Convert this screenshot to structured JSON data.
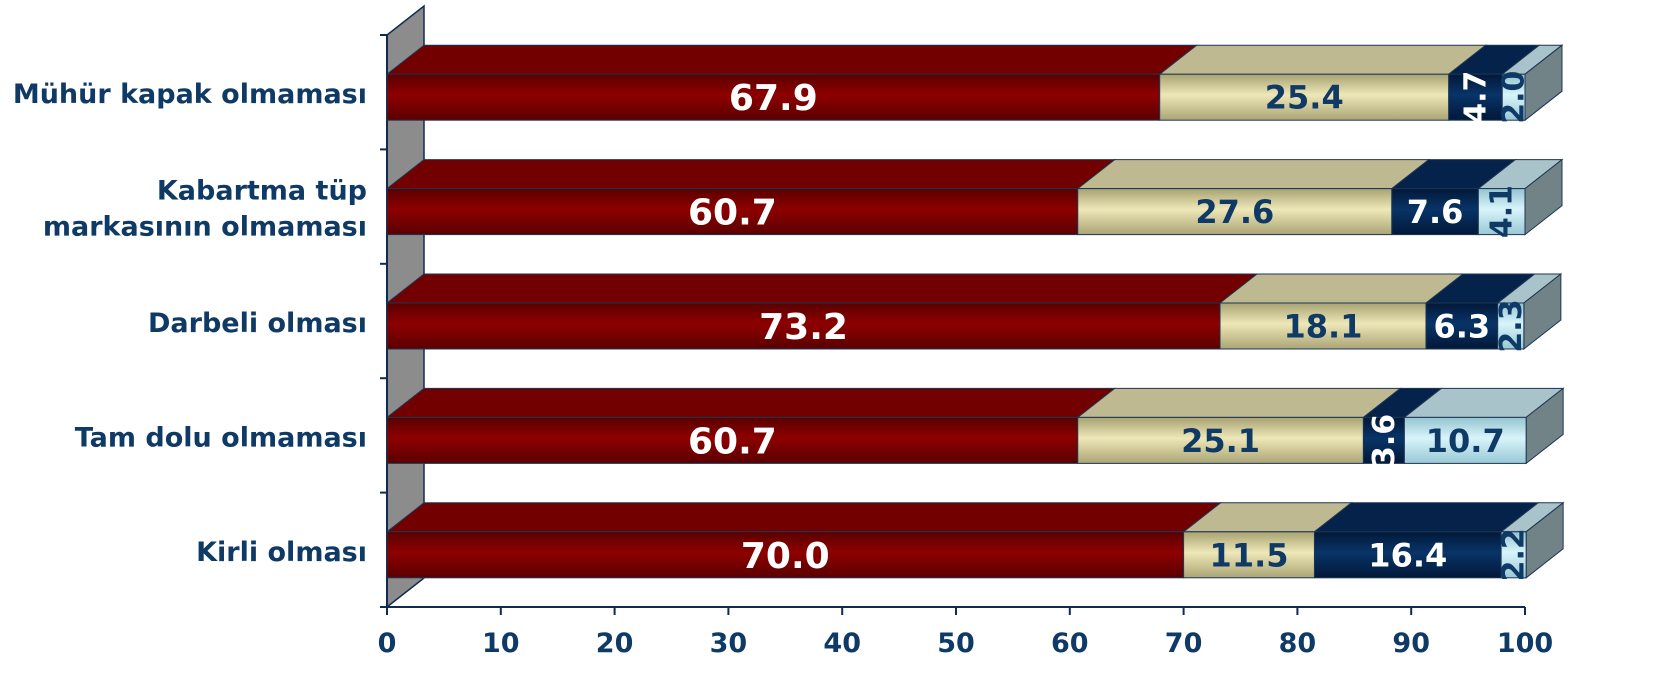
{
  "chart_data": {
    "type": "bar",
    "orientation": "horizontal",
    "stacked": true,
    "three_d": true,
    "categories": [
      "Mühür kapak olmaması",
      "Kabartma tüp markasının olmaması",
      "Darbeli olması",
      "Tam dolu olmaması",
      "Kirli olması"
    ],
    "category_lines": [
      [
        "Mühür kapak olmaması"
      ],
      [
        "Kabartma tüp",
        "markasının olmaması"
      ],
      [
        "Darbeli olması"
      ],
      [
        "Tam dolu olmaması"
      ],
      [
        "Kirli olması"
      ]
    ],
    "series": [
      {
        "values": [
          67.9,
          60.7,
          73.2,
          60.7,
          70.0
        ],
        "labels": [
          "67.9",
          "60.7",
          "73.2",
          "60.7",
          "70.0"
        ],
        "color": "#8b0000"
      },
      {
        "values": [
          25.4,
          27.6,
          18.1,
          25.1,
          11.5
        ],
        "labels": [
          "25.4",
          "27.6",
          "18.1",
          "25.1",
          "11.5"
        ],
        "color": "#e8e2b0"
      },
      {
        "values": [
          4.7,
          7.6,
          6.3,
          3.6,
          16.4
        ],
        "labels": [
          "4.7",
          "7.6",
          "6.3",
          "3.6",
          "16.4"
        ],
        "color": "#062a5a"
      },
      {
        "values": [
          2.0,
          4.1,
          2.3,
          10.7,
          2.2
        ],
        "labels": [
          "2.0",
          "4.1",
          "2.3",
          "10.7",
          "2.2"
        ],
        "color": "#cdeef6"
      }
    ],
    "label_colors": [
      "#ffffff",
      "#0f3a66",
      "#ffffff",
      "#0f3a66"
    ],
    "xlim": [
      0,
      100
    ],
    "xticks": [
      "0",
      "10",
      "20",
      "30",
      "40",
      "50",
      "60",
      "70",
      "80",
      "90",
      "100"
    ],
    "title": "",
    "xlabel": "",
    "ylabel": "",
    "legend": "none",
    "grid": false
  }
}
